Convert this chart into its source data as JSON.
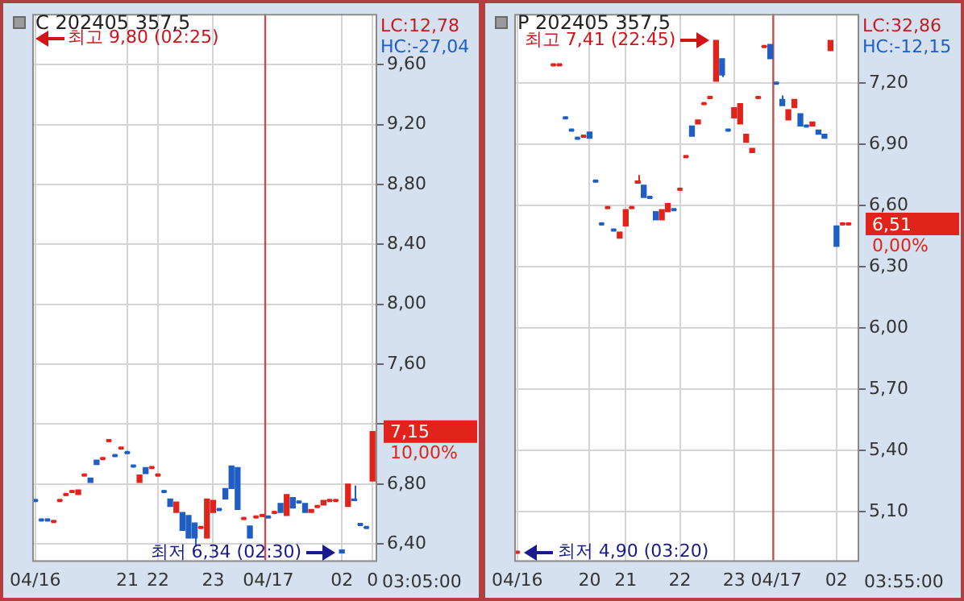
{
  "chart_data": [
    {
      "type": "candlestick",
      "title": "C 202405 357,5",
      "categories": [
        "04/16",
        null,
        null,
        null,
        null,
        null,
        null,
        null,
        null,
        null,
        null,
        null,
        null,
        null,
        null,
        "21",
        null,
        null,
        null,
        null,
        "22",
        null,
        null,
        null,
        null,
        null,
        null,
        null,
        null,
        "23",
        null,
        null,
        null,
        null,
        null,
        null,
        null,
        null,
        "04/17",
        null,
        null,
        null,
        null,
        null,
        null,
        null,
        null,
        null,
        null,
        null,
        "02",
        null,
        null,
        null,
        null,
        "0"
      ],
      "ohlc": [
        [
          6.69,
          6.69,
          6.69,
          6.69
        ],
        [
          6.56,
          6.56,
          6.56,
          6.56
        ],
        [
          6.56,
          6.56,
          6.56,
          6.56
        ],
        [
          6.55,
          6.55,
          6.55,
          6.55
        ],
        [
          6.69,
          6.69,
          6.69,
          6.69
        ],
        [
          6.73,
          6.73,
          6.73,
          6.73
        ],
        [
          6.75,
          6.75,
          6.75,
          6.75
        ],
        [
          6.73,
          6.76,
          6.73,
          6.76
        ],
        [
          6.86,
          6.86,
          6.86,
          6.86
        ],
        [
          6.84,
          6.84,
          6.81,
          6.81
        ],
        [
          6.96,
          6.96,
          6.93,
          6.93
        ],
        [
          6.97,
          6.97,
          6.97,
          6.97
        ],
        [
          7.09,
          7.09,
          7.09,
          7.09
        ],
        [
          6.99,
          6.99,
          6.99,
          6.99
        ],
        [
          7.04,
          7.04,
          7.04,
          7.04
        ],
        [
          7.01,
          7.01,
          7.01,
          7.01
        ],
        [
          6.92,
          6.92,
          6.92,
          6.92
        ],
        [
          6.81,
          6.86,
          6.81,
          6.86
        ],
        [
          6.91,
          6.91,
          6.87,
          6.87
        ],
        [
          6.91,
          6.91,
          6.91,
          6.91
        ],
        [
          6.86,
          6.86,
          6.86,
          6.86
        ],
        [
          6.75,
          6.75,
          6.75,
          6.75
        ],
        [
          6.7,
          6.7,
          6.65,
          6.65
        ],
        [
          6.61,
          6.68,
          6.61,
          6.68
        ],
        [
          6.61,
          6.61,
          6.49,
          6.49
        ],
        [
          6.59,
          6.59,
          6.44,
          6.44
        ],
        [
          6.54,
          6.54,
          6.38,
          6.44
        ],
        [
          6.51,
          6.51,
          6.51,
          6.51
        ],
        [
          6.44,
          6.7,
          6.44,
          6.7
        ],
        [
          6.61,
          6.69,
          6.61,
          6.69
        ],
        [
          6.63,
          6.63,
          6.63,
          6.63
        ],
        [
          6.77,
          6.77,
          6.7,
          6.7
        ],
        [
          6.92,
          6.92,
          6.77,
          6.77
        ],
        [
          6.91,
          6.91,
          6.63,
          6.63
        ],
        [
          6.57,
          6.57,
          6.57,
          6.57
        ],
        [
          6.52,
          6.52,
          6.44,
          6.44
        ],
        [
          6.58,
          6.58,
          6.58,
          6.58
        ],
        [
          6.59,
          6.59,
          6.59,
          6.59
        ],
        [
          6.58,
          6.58,
          6.58,
          6.58
        ],
        [
          6.61,
          6.61,
          6.61,
          6.61
        ],
        [
          6.67,
          6.67,
          6.61,
          6.61
        ],
        [
          6.59,
          6.73,
          6.59,
          6.73
        ],
        [
          6.71,
          6.71,
          6.64,
          6.64
        ],
        [
          6.68,
          6.68,
          6.68,
          6.68
        ],
        [
          6.67,
          6.67,
          6.61,
          6.61
        ],
        [
          6.61,
          6.63,
          6.61,
          6.63
        ],
        [
          6.65,
          6.65,
          6.65,
          6.65
        ],
        [
          6.66,
          6.69,
          6.66,
          6.69
        ],
        [
          6.69,
          6.69,
          6.69,
          6.69
        ],
        [
          6.69,
          6.69,
          6.69,
          6.69
        ],
        [
          6.36,
          6.36,
          6.34,
          6.34
        ],
        [
          6.65,
          6.8,
          6.65,
          6.8
        ],
        [
          6.7,
          6.79,
          6.69,
          6.69
        ],
        [
          6.53,
          6.53,
          6.53,
          6.53
        ],
        [
          6.51,
          6.51,
          6.51,
          6.51
        ],
        [
          6.82,
          7.15,
          6.82,
          7.15
        ]
      ],
      "colors": [
        "#1f5fc4",
        "#1f5fc4",
        "#1f5fc4",
        "#e0241b",
        "#e0241b",
        "#e0241b",
        "#e0241b",
        "#e0241b",
        "#e0241b",
        "#1f5fc4",
        "#1f5fc4",
        "#e0241b",
        "#e0241b",
        "#1f5fc4",
        "#e0241b",
        "#1f5fc4",
        "#1f5fc4",
        "#e0241b",
        "#1f5fc4",
        "#e0241b",
        "#e0241b",
        "#1f5fc4",
        "#1f5fc4",
        "#e0241b",
        "#1f5fc4",
        "#1f5fc4",
        "#1f5fc4",
        "#e0241b",
        "#e0241b",
        "#e0241b",
        "#1f5fc4",
        "#1f5fc4",
        "#1f5fc4",
        "#1f5fc4",
        "#e0241b",
        "#1f5fc4",
        "#e0241b",
        "#e0241b",
        "#1f5fc4",
        "#e0241b",
        "#1f5fc4",
        "#e0241b",
        "#1f5fc4",
        "#1f5fc4",
        "#1f5fc4",
        "#e0241b",
        "#e0241b",
        "#e0241b",
        "#e0241b",
        "#e0241b",
        "#1f5fc4",
        "#e0241b",
        "#1f5fc4",
        "#1f5fc4",
        "#1f5fc4",
        "#e0241b"
      ],
      "ylim": [
        6.29,
        9.94
      ],
      "yticks": [
        {
          "value": 6.4,
          "label": "6,40"
        },
        {
          "value": 6.8,
          "label": "6,80"
        },
        {
          "value": 7.2,
          "label": null
        },
        {
          "value": 7.6,
          "label": "7,60"
        },
        {
          "value": 8.0,
          "label": "8,00"
        },
        {
          "value": 8.4,
          "label": "8,40"
        },
        {
          "value": 8.8,
          "label": "8,80"
        },
        {
          "value": 9.2,
          "label": "9,20"
        },
        {
          "value": 9.6,
          "label": "9,60"
        }
      ],
      "grid": true,
      "ref_lines": [
        {
          "axis": "x",
          "value": "04/17",
          "color": "#c0504d"
        }
      ],
      "annotations": [
        "LC:12,78",
        "HC:-27,04",
        "7,15",
        "10,00%",
        "03:05:00",
        "최고 9,80 (02:25)",
        "최저 6,34 (02:30)"
      ]
    },
    {
      "type": "candlestick",
      "title": "P 202405 357,5",
      "categories": [
        "04/16",
        null,
        null,
        null,
        null,
        null,
        null,
        null,
        null,
        null,
        null,
        null,
        "20",
        null,
        null,
        null,
        null,
        null,
        "21",
        null,
        null,
        null,
        null,
        null,
        null,
        null,
        null,
        "22",
        null,
        null,
        null,
        null,
        null,
        null,
        null,
        null,
        "23",
        null,
        null,
        null,
        null,
        null,
        null,
        "04/17",
        null,
        null,
        null,
        null,
        null,
        null,
        null,
        null,
        null,
        "02",
        null,
        null,
        null
      ],
      "ohlc": [
        [
          4.9,
          4.9,
          4.9,
          4.9
        ],
        null,
        null,
        null,
        null,
        null,
        [
          7.29,
          7.29,
          7.29,
          7.29
        ],
        [
          7.29,
          7.29,
          7.29,
          7.29
        ],
        [
          7.03,
          7.03,
          7.03,
          7.03
        ],
        [
          6.97,
          6.97,
          6.97,
          6.97
        ],
        [
          6.93,
          6.93,
          6.93,
          6.93
        ],
        [
          6.94,
          6.94,
          6.94,
          6.94
        ],
        [
          6.96,
          6.96,
          6.93,
          6.93
        ],
        [
          6.72,
          6.72,
          6.72,
          6.72
        ],
        [
          6.51,
          6.51,
          6.51,
          6.51
        ],
        [
          6.59,
          6.59,
          6.59,
          6.59
        ],
        [
          6.48,
          6.48,
          6.48,
          6.48
        ],
        [
          6.44,
          6.47,
          6.44,
          6.47
        ],
        [
          6.5,
          6.58,
          6.5,
          6.58
        ],
        [
          6.59,
          6.59,
          6.59,
          6.59
        ],
        [
          6.71,
          6.75,
          6.71,
          6.72
        ],
        [
          6.7,
          6.7,
          6.64,
          6.64
        ],
        [
          6.64,
          6.64,
          6.64,
          6.64
        ],
        [
          6.57,
          6.57,
          6.53,
          6.53
        ],
        [
          6.53,
          6.58,
          6.53,
          6.58
        ],
        [
          6.57,
          6.61,
          6.57,
          6.61
        ],
        [
          6.58,
          6.58,
          6.58,
          6.58
        ],
        [
          6.68,
          6.68,
          6.68,
          6.68
        ],
        [
          6.84,
          6.84,
          6.84,
          6.84
        ],
        [
          6.99,
          6.99,
          6.94,
          6.94
        ],
        [
          7.0,
          7.02,
          7.0,
          7.02
        ],
        [
          7.1,
          7.1,
          7.1,
          7.1
        ],
        [
          7.13,
          7.13,
          7.13,
          7.13
        ],
        [
          7.21,
          7.41,
          7.21,
          7.41
        ],
        [
          7.32,
          7.32,
          7.23,
          7.24
        ],
        [
          6.97,
          6.97,
          6.97,
          6.97
        ],
        [
          7.03,
          7.08,
          7.03,
          7.08
        ],
        [
          7.0,
          7.1,
          7.0,
          7.1
        ],
        [
          6.91,
          6.95,
          6.91,
          6.95
        ],
        [
          6.86,
          6.88,
          6.86,
          6.88
        ],
        [
          7.13,
          7.13,
          7.13,
          7.13
        ],
        [
          7.38,
          7.38,
          7.38,
          7.38
        ],
        [
          7.39,
          7.39,
          7.32,
          7.32
        ],
        [
          7.2,
          7.2,
          7.2,
          7.2
        ],
        [
          7.12,
          7.14,
          7.09,
          7.09
        ],
        [
          7.02,
          7.07,
          7.02,
          7.07
        ],
        [
          7.08,
          7.12,
          7.08,
          7.12
        ],
        [
          7.05,
          7.05,
          6.99,
          6.99
        ],
        [
          6.99,
          6.99,
          6.99,
          6.99
        ],
        [
          6.99,
          7.01,
          6.99,
          7.01
        ],
        [
          6.97,
          6.97,
          6.95,
          6.95
        ],
        [
          6.95,
          6.95,
          6.93,
          6.93
        ],
        [
          7.36,
          7.41,
          7.36,
          7.41
        ],
        [
          6.5,
          6.5,
          6.4,
          6.4
        ],
        [
          6.51,
          6.51,
          6.51,
          6.51
        ],
        [
          6.51,
          6.51,
          6.51,
          6.51
        ],
        null
      ],
      "colors": [
        "#e0241b",
        null,
        null,
        null,
        null,
        null,
        "#e0241b",
        "#e0241b",
        "#1f5fc4",
        "#1f5fc4",
        "#1f5fc4",
        "#e0241b",
        "#1f5fc4",
        "#1f5fc4",
        "#1f5fc4",
        "#e0241b",
        "#1f5fc4",
        "#e0241b",
        "#e0241b",
        "#e0241b",
        "#e0241b",
        "#1f5fc4",
        "#1f5fc4",
        "#1f5fc4",
        "#e0241b",
        "#e0241b",
        "#1f5fc4",
        "#e0241b",
        "#e0241b",
        "#1f5fc4",
        "#e0241b",
        "#e0241b",
        "#e0241b",
        "#e0241b",
        "#1f5fc4",
        "#1f5fc4",
        "#e0241b",
        "#e0241b",
        "#e0241b",
        "#e0241b",
        "#e0241b",
        "#e0241b",
        "#1f5fc4",
        "#1f5fc4",
        "#1f5fc4",
        "#e0241b",
        "#e0241b",
        "#1f5fc4",
        "#1f5fc4",
        "#e0241b",
        "#1f5fc4",
        "#1f5fc4",
        "#e0241b",
        "#1f5fc4",
        "#e0241b",
        "#e0241b",
        null
      ],
      "ylim": [
        4.86,
        7.54
      ],
      "yticks": [
        {
          "value": 5.1,
          "label": "5,10"
        },
        {
          "value": 5.4,
          "label": "5,40"
        },
        {
          "value": 5.7,
          "label": "5,70"
        },
        {
          "value": 6.0,
          "label": "6,00"
        },
        {
          "value": 6.3,
          "label": "6,30"
        },
        {
          "value": 6.6,
          "label": "6,60"
        },
        {
          "value": 6.9,
          "label": "6,90"
        },
        {
          "value": 7.2,
          "label": "7,20"
        }
      ],
      "grid": true,
      "ref_lines": [
        {
          "axis": "x",
          "value": "04/17",
          "color": "#c0504d"
        }
      ],
      "annotations": [
        "LC:32,86",
        "HC:-12,15",
        "6,51",
        "0,00%",
        "03:55:00",
        "최고 7,41 (22:45)",
        "최저 4,90 (03:20)"
      ]
    }
  ]
}
